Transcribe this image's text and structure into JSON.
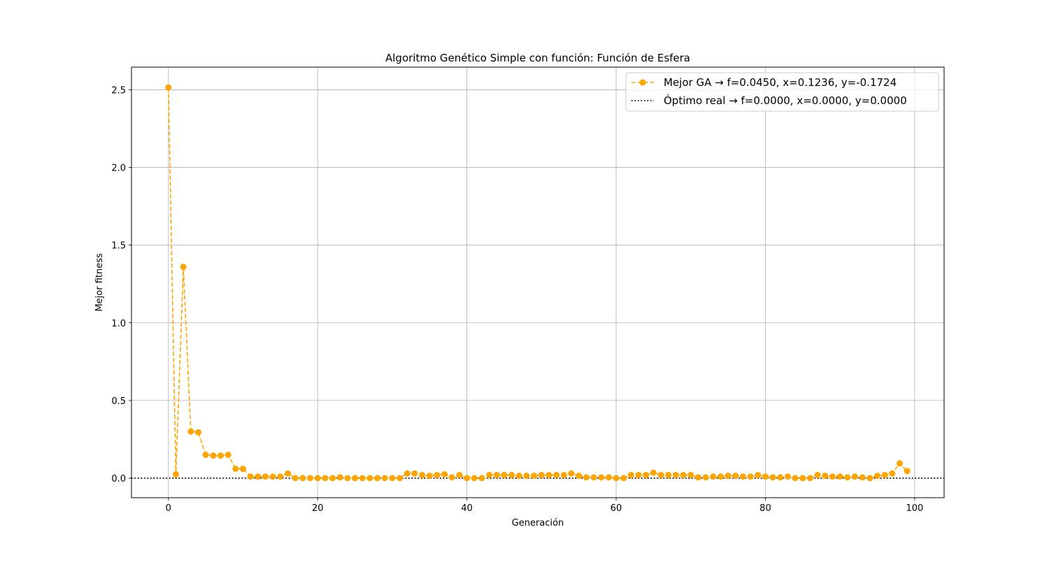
{
  "chart_data": {
    "type": "line",
    "title": "Algoritmo Genético Simple con función: Función de Esfera",
    "xlabel": "Generación",
    "ylabel": "Mejor fitness",
    "xlim": [
      -4.95,
      103.95
    ],
    "ylim": [
      -0.126,
      2.646
    ],
    "xticks": [
      0,
      20,
      40,
      60,
      80,
      100
    ],
    "xtick_labels": [
      "0",
      "20",
      "40",
      "60",
      "80",
      "100"
    ],
    "yticks": [
      0.0,
      0.5,
      1.0,
      1.5,
      2.0,
      2.5
    ],
    "ytick_labels": [
      "0.0",
      "0.5",
      "1.0",
      "1.5",
      "2.0",
      "2.5"
    ],
    "grid": true,
    "legend_position": "top-right",
    "series": [
      {
        "name": "Mejor GA → f=0.0450, x=0.1236, y=-0.1724",
        "color": "#ffa500",
        "style": "dashed-with-markers",
        "x": [
          0,
          1,
          2,
          3,
          4,
          5,
          6,
          7,
          8,
          9,
          10,
          11,
          12,
          13,
          14,
          15,
          16,
          17,
          18,
          19,
          20,
          21,
          22,
          23,
          24,
          25,
          26,
          27,
          28,
          29,
          30,
          31,
          32,
          33,
          34,
          35,
          36,
          37,
          38,
          39,
          40,
          41,
          42,
          43,
          44,
          45,
          46,
          47,
          48,
          49,
          50,
          51,
          52,
          53,
          54,
          55,
          56,
          57,
          58,
          59,
          60,
          61,
          62,
          63,
          64,
          65,
          66,
          67,
          68,
          69,
          70,
          71,
          72,
          73,
          74,
          75,
          76,
          77,
          78,
          79,
          80,
          81,
          82,
          83,
          84,
          85,
          86,
          87,
          88,
          89,
          90,
          91,
          92,
          93,
          94,
          95,
          96,
          97,
          98,
          99
        ],
        "values": [
          2.515,
          0.025,
          1.36,
          0.3,
          0.295,
          0.15,
          0.145,
          0.145,
          0.15,
          0.06,
          0.06,
          0.01,
          0.01,
          0.01,
          0.01,
          0.01,
          0.03,
          0.0,
          0.0,
          0.0,
          0.0,
          0.0,
          0.0,
          0.005,
          0.0,
          0.0,
          0.0,
          0.0,
          0.0,
          0.0,
          0.0,
          0.0,
          0.03,
          0.03,
          0.02,
          0.015,
          0.02,
          0.025,
          0.005,
          0.02,
          0.0,
          0.0,
          0.0,
          0.02,
          0.02,
          0.02,
          0.02,
          0.015,
          0.015,
          0.015,
          0.02,
          0.02,
          0.02,
          0.02,
          0.03,
          0.015,
          0.005,
          0.005,
          0.005,
          0.005,
          0.0,
          0.0,
          0.02,
          0.02,
          0.02,
          0.035,
          0.02,
          0.02,
          0.02,
          0.02,
          0.02,
          0.005,
          0.005,
          0.01,
          0.01,
          0.015,
          0.015,
          0.01,
          0.01,
          0.02,
          0.01,
          0.005,
          0.005,
          0.01,
          0.0,
          0.0,
          0.0,
          0.02,
          0.015,
          0.01,
          0.01,
          0.005,
          0.01,
          0.005,
          0.0,
          0.015,
          0.02,
          0.03,
          0.095,
          0.045
        ]
      },
      {
        "name": "Óptimo real → f=0.0000, x=0.0000, y=0.0000",
        "color": "#000000",
        "style": "dotted-horizontal",
        "y": 0.0
      }
    ]
  }
}
